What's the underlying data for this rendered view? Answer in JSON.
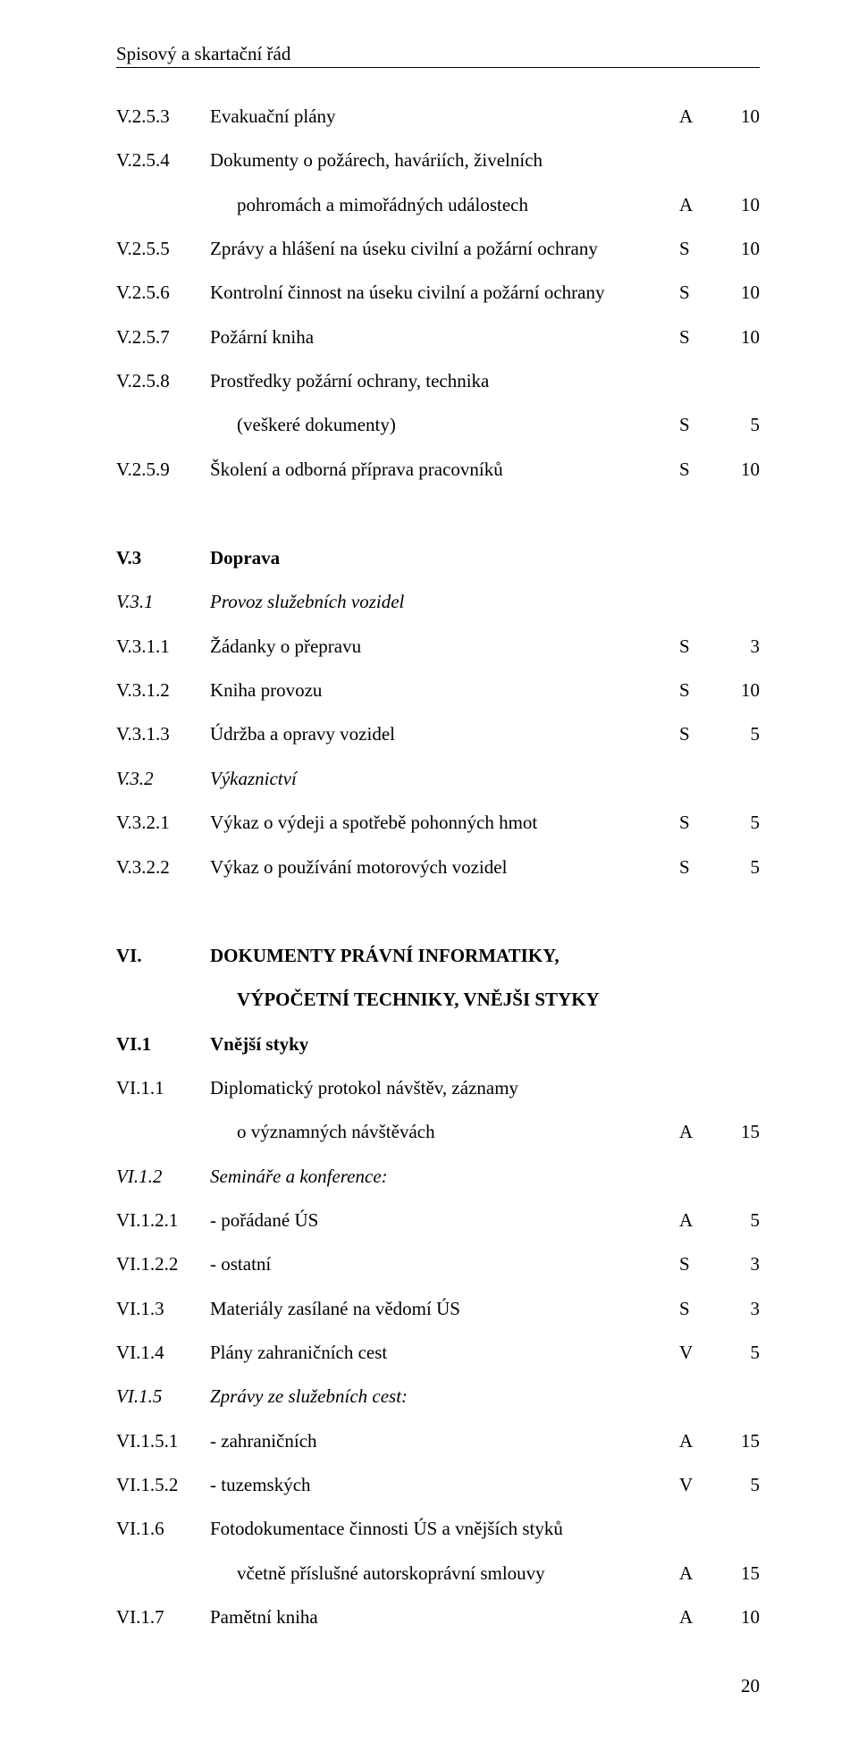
{
  "header": {
    "running_title": "Spisový a skartační řád"
  },
  "rows": [
    {
      "code": "V.2.5.3",
      "desc": "Evakuační plány",
      "mark": "A",
      "num": "10"
    },
    {
      "code": "V.2.5.4",
      "desc": "Dokumenty o požárech, haváriích, živelních"
    },
    {
      "indent": true,
      "desc": "pohromách a mimořádných událostech",
      "mark": "A",
      "num": "10"
    },
    {
      "code": "V.2.5.5",
      "desc": "Zprávy a hlášení na úseku civilní a požární ochrany",
      "mark": "S",
      "num": "10"
    },
    {
      "code": "V.2.5.6",
      "desc": "Kontrolní činnost na úseku civilní a požární ochrany",
      "mark": "S",
      "num": "10"
    },
    {
      "code": "V.2.5.7",
      "desc": "Požární kniha",
      "mark": "S",
      "num": "10"
    },
    {
      "code": "V.2.5.8",
      "desc": "Prostředky požární ochrany, technika"
    },
    {
      "indent": true,
      "desc": "(veškeré dokumenty)",
      "mark": "S",
      "num": "5"
    },
    {
      "code": "V.2.5.9",
      "desc": "Školení a odborná příprava pracovníků",
      "mark": "S",
      "num": "10"
    },
    {
      "gap": "med"
    },
    {
      "code": "V.3",
      "desc": "Doprava",
      "bold": true
    },
    {
      "code": "V.3.1",
      "desc": "Provoz služebních vozidel",
      "italic": true
    },
    {
      "code": "V.3.1.1",
      "desc": "Žádanky o přepravu",
      "mark": "S",
      "num": "3"
    },
    {
      "code": "V.3.1.2",
      "desc": "Kniha provozu",
      "mark": "S",
      "num": "10"
    },
    {
      "code": "V.3.1.3",
      "desc": "Údržba a opravy vozidel",
      "mark": "S",
      "num": "5"
    },
    {
      "code": "V.3.2",
      "desc": "Výkaznictví",
      "italic": true
    },
    {
      "code": "V.3.2.1",
      "desc": "Výkaz o výdeji a spotřebě pohonných hmot",
      "mark": "S",
      "num": "5"
    },
    {
      "code": "V.3.2.2",
      "desc": "Výkaz o používání motorových vozidel",
      "mark": "S",
      "num": "5"
    },
    {
      "gap": "med"
    },
    {
      "code": "VI.",
      "desc": "DOKUMENTY PRÁVNÍ INFORMATIKY,",
      "bold": true
    },
    {
      "indent": true,
      "desc": "VÝPOČETNÍ TECHNIKY, VNĚJŠI STYKY",
      "bold": true
    },
    {
      "code": "VI.1",
      "desc": "Vnější styky",
      "bold": true
    },
    {
      "code": "VI.1.1",
      "desc": "Diplomatický protokol návštěv, záznamy"
    },
    {
      "indent": true,
      "desc": "o významných návštěvách",
      "mark": "A",
      "num": "15"
    },
    {
      "code": "VI.1.2",
      "desc": "Semináře a konference:",
      "italic": true
    },
    {
      "code": "VI.1.2.1",
      "desc": "- pořádané ÚS",
      "mark": "A",
      "num": "5"
    },
    {
      "code": "VI.1.2.2",
      "desc": "- ostatní",
      "mark": "S",
      "num": "3"
    },
    {
      "code": "VI.1.3",
      "desc": "Materiály zasílané na vědomí ÚS",
      "mark": "S",
      "num": "3"
    },
    {
      "code": "VI.1.4",
      "desc": "Plány zahraničních cest",
      "mark": "V",
      "num": "5"
    },
    {
      "code": "VI.1.5",
      "desc": "Zprávy ze služebních cest:",
      "italic": true
    },
    {
      "code": "VI.1.5.1",
      "desc": "- zahraničních",
      "mark": "A",
      "num": "15"
    },
    {
      "code": "VI.1.5.2",
      "desc": "- tuzemských",
      "mark": "V",
      "num": "5"
    },
    {
      "code": "VI.1.6",
      "desc": "Fotodokumentace činnosti ÚS a vnějších styků"
    },
    {
      "indent": true,
      "desc": "včetně příslušné autorskoprávní smlouvy",
      "mark": "A",
      "num": "15"
    },
    {
      "code": "VI.1.7",
      "desc": "Pamětní kniha",
      "mark": "A",
      "num": "10"
    }
  ],
  "footer": {
    "page_number": "20"
  }
}
